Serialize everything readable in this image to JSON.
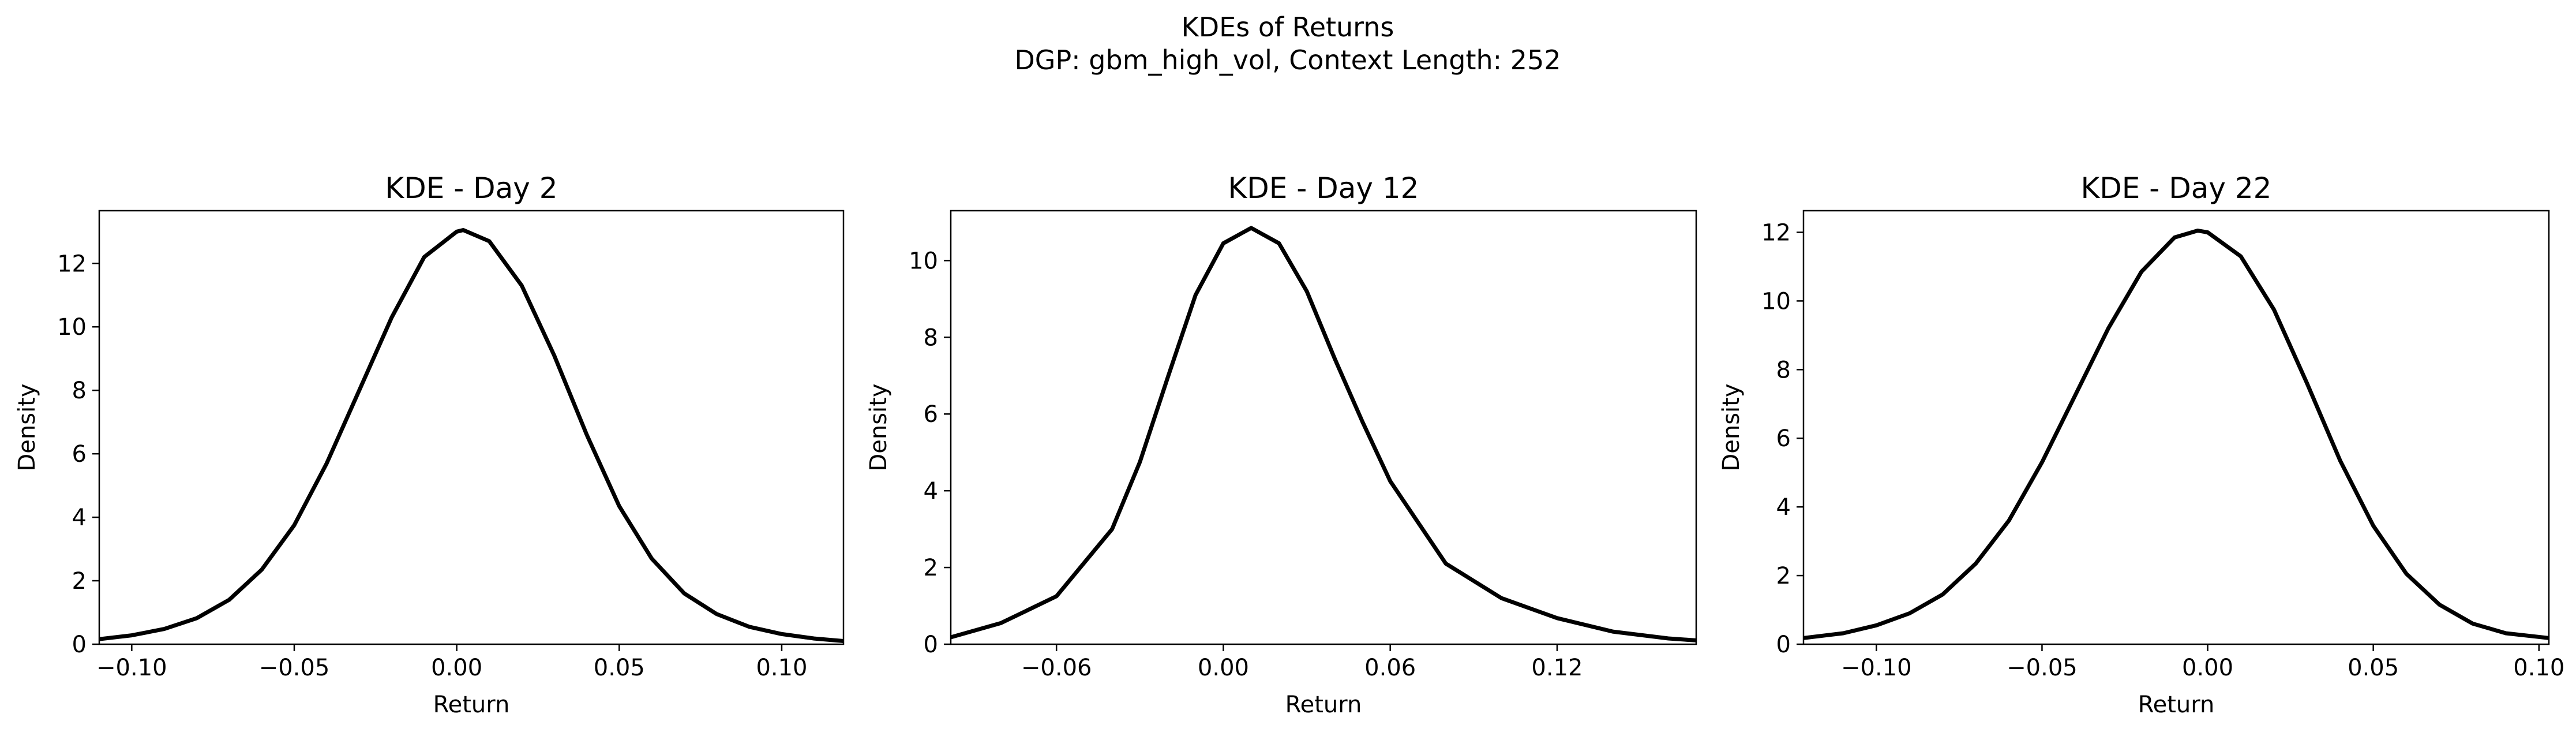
{
  "figure": {
    "title_line1": "KDEs of Returns",
    "title_line2": "DGP: gbm_high_vol, Context Length: 252"
  },
  "chart_data": [
    {
      "type": "line",
      "title": "KDE - Day 2",
      "xlabel": "Return",
      "ylabel": "Density",
      "xlim": [
        -0.11,
        0.119
      ],
      "ylim": [
        0,
        13.66
      ],
      "xticks": [
        -0.1,
        -0.05,
        0.0,
        0.05,
        0.1
      ],
      "xtick_labels": [
        "−0.10",
        "−0.05",
        "0.00",
        "0.05",
        "0.10"
      ],
      "yticks": [
        0,
        2,
        4,
        6,
        8,
        10,
        12
      ],
      "ytick_labels": [
        "0",
        "2",
        "4",
        "6",
        "8",
        "10",
        "12"
      ],
      "grid": false,
      "series": [
        {
          "color": "#000000",
          "x": [
            -0.11,
            -0.1,
            -0.09,
            -0.08,
            -0.07,
            -0.06,
            -0.05,
            -0.04,
            -0.03,
            -0.02,
            -0.01,
            0.0,
            0.002,
            0.01,
            0.02,
            0.03,
            0.04,
            0.05,
            0.06,
            0.07,
            0.08,
            0.09,
            0.1,
            0.11,
            0.119
          ],
          "y": [
            0.16,
            0.28,
            0.48,
            0.82,
            1.4,
            2.35,
            3.75,
            5.7,
            8.0,
            10.3,
            12.2,
            13.0,
            13.05,
            12.7,
            11.3,
            9.1,
            6.6,
            4.35,
            2.7,
            1.6,
            0.95,
            0.55,
            0.32,
            0.18,
            0.1
          ]
        }
      ]
    },
    {
      "type": "line",
      "title": "KDE - Day 12",
      "xlabel": "Return",
      "ylabel": "Density",
      "xlim": [
        -0.098,
        0.17
      ],
      "ylim": [
        0,
        11.3
      ],
      "xticks": [
        -0.06,
        0.0,
        0.06,
        0.12
      ],
      "xtick_labels": [
        "−0.06",
        "0.00",
        "0.06",
        "0.12"
      ],
      "yticks": [
        0,
        2,
        4,
        6,
        8,
        10
      ],
      "ytick_labels": [
        "0",
        "2",
        "4",
        "6",
        "8",
        "10"
      ],
      "grid": false,
      "series": [
        {
          "color": "#000000",
          "x": [
            -0.098,
            -0.08,
            -0.06,
            -0.04,
            -0.03,
            -0.02,
            -0.01,
            0.0,
            0.01,
            0.02,
            0.03,
            0.04,
            0.05,
            0.06,
            0.08,
            0.1,
            0.12,
            0.14,
            0.16,
            0.17
          ],
          "y": [
            0.18,
            0.55,
            1.25,
            3.0,
            4.75,
            6.95,
            9.1,
            10.45,
            10.85,
            10.45,
            9.2,
            7.45,
            5.8,
            4.25,
            2.1,
            1.2,
            0.68,
            0.33,
            0.15,
            0.1
          ]
        }
      ]
    },
    {
      "type": "line",
      "title": "KDE - Day 22",
      "xlabel": "Return",
      "ylabel": "Density",
      "xlim": [
        -0.122,
        0.103
      ],
      "ylim": [
        0,
        12.63
      ],
      "xticks": [
        -0.1,
        -0.05,
        0.0,
        0.05,
        0.1
      ],
      "xtick_labels": [
        "−0.10",
        "−0.05",
        "0.00",
        "0.05",
        "0.10"
      ],
      "yticks": [
        0,
        2,
        4,
        6,
        8,
        10,
        12
      ],
      "ytick_labels": [
        "0",
        "2",
        "4",
        "6",
        "8",
        "10",
        "12"
      ],
      "grid": false,
      "series": [
        {
          "color": "#000000",
          "x": [
            -0.122,
            -0.11,
            -0.1,
            -0.09,
            -0.08,
            -0.07,
            -0.06,
            -0.05,
            -0.04,
            -0.03,
            -0.02,
            -0.01,
            -0.003,
            0.0,
            0.01,
            0.02,
            0.03,
            0.04,
            0.05,
            0.06,
            0.07,
            0.08,
            0.09,
            0.103
          ],
          "y": [
            0.18,
            0.32,
            0.55,
            0.9,
            1.45,
            2.35,
            3.6,
            5.3,
            7.25,
            9.2,
            10.85,
            11.85,
            12.05,
            12.0,
            11.3,
            9.75,
            7.6,
            5.35,
            3.45,
            2.05,
            1.15,
            0.6,
            0.32,
            0.18
          ]
        }
      ]
    }
  ]
}
